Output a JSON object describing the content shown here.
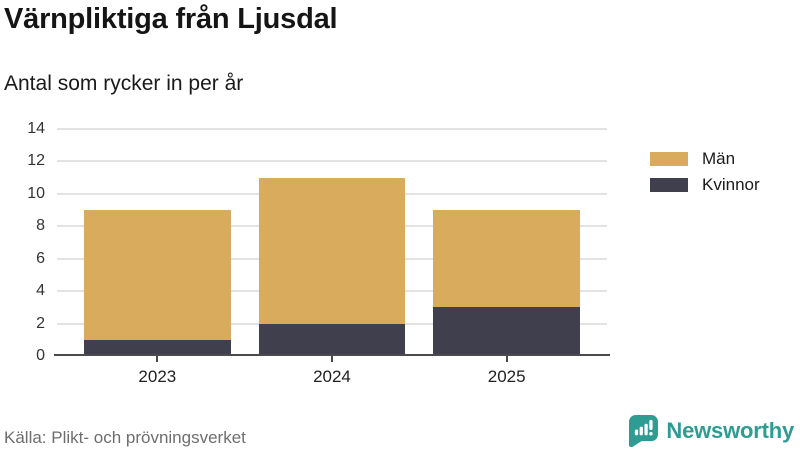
{
  "chart_data": {
    "type": "bar",
    "stacked": true,
    "title": "Värnpliktiga från Ljusdal",
    "subtitle": "Antal som rycker in per år",
    "categories": [
      "2023",
      "2024",
      "2025"
    ],
    "series": [
      {
        "key": "man",
        "name": "Män",
        "color": "#d9ab5c",
        "values": [
          8,
          9,
          6
        ]
      },
      {
        "key": "kvinnor",
        "name": "Kvinnor",
        "color": "#3f3f4d",
        "values": [
          1,
          2,
          3
        ]
      }
    ],
    "stack_order_bottom_to_top": [
      "kvinnor",
      "man"
    ],
    "stack_totals": [
      9,
      11,
      9
    ],
    "ylim": [
      0,
      14
    ],
    "yticks": [
      0,
      2,
      4,
      6,
      8,
      10,
      12,
      14
    ],
    "xlabel": "",
    "ylabel": "",
    "grid": true,
    "legend_position": "right"
  },
  "footer": {
    "source": "Källa: Plikt- och prövningsverket",
    "brand": "Newsworthy"
  },
  "colors": {
    "brand_teal": "#2e9c93",
    "gridline": "#e3e3e3",
    "axis": "#4b4b4b",
    "text_dark": "#1a1a1a",
    "text_muted": "#6e6e6e"
  }
}
